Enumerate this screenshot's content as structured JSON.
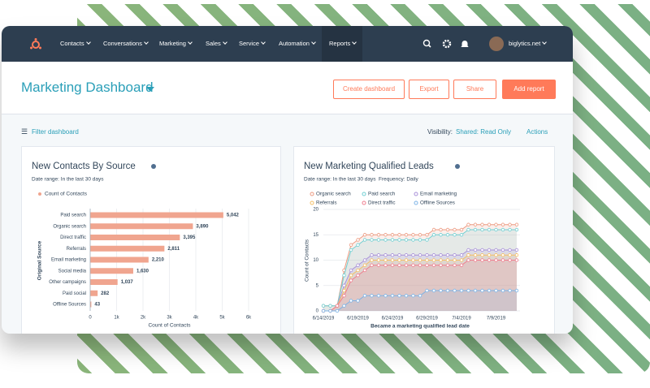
{
  "nav": {
    "items": [
      "Contacts",
      "Conversations",
      "Marketing",
      "Sales",
      "Service",
      "Automation",
      "Reports"
    ],
    "account": "biglytics.net"
  },
  "header": {
    "title": "Marketing Dashboard",
    "buttons": [
      "Create dashboard",
      "Export",
      "Share",
      "Add report"
    ]
  },
  "toolbar": {
    "filter": "Filter dashboard",
    "visibility_label": "Visibility:",
    "visibility": "Shared: Read Only",
    "actions": "Actions"
  },
  "chart_data": [
    {
      "type": "bar",
      "orientation": "horizontal",
      "title": "New Contacts By Source",
      "subtitle": "Date range: In the last 30 days",
      "categories": [
        "Paid search",
        "Organic search",
        "Direct traffic",
        "Referrals",
        "Email marketing",
        "Social media",
        "Other campaigns",
        "Paid social",
        "Offline Sources"
      ],
      "series": [
        {
          "name": "Count of Contacts",
          "color": "#f0a58f",
          "values": [
            5042,
            3890,
            3395,
            2811,
            2210,
            1630,
            1037,
            282,
            43
          ],
          "value_labels": [
            "5,042",
            "3,890",
            "3,395",
            "2,811",
            "2,210",
            "1,630",
            "1,037",
            "282",
            "43"
          ]
        }
      ],
      "xlabel": "Count of Contacts",
      "ylabel": "Original Source",
      "xlim": [
        0,
        6000
      ],
      "xticks": [
        0,
        {
          "value": 1000,
          "label": "1k"
        },
        {
          "value": 2000,
          "label": "2k"
        },
        {
          "value": 3000,
          "label": "3k"
        },
        {
          "value": 4000,
          "label": "4k"
        },
        {
          "value": 5000,
          "label": "5k"
        },
        {
          "value": 6000,
          "label": "6k"
        }
      ],
      "grid": true
    },
    {
      "type": "line",
      "title": "New Marketing Qualified Leads",
      "subtitle": "Date range: In the last 30 days",
      "frequency": "Frequency: Daily",
      "categories": [
        "6/14/2019",
        null,
        null,
        null,
        null,
        "6/19/2019",
        null,
        null,
        null,
        null,
        "6/24/2019",
        null,
        null,
        null,
        null,
        "6/29/2019",
        null,
        null,
        null,
        null,
        "7/4/2019",
        null,
        null,
        null,
        null,
        "7/9/2019",
        null,
        null,
        null
      ],
      "series": [
        {
          "name": "Organic search",
          "color": "#ec9a80",
          "values": [
            1,
            1,
            1,
            8,
            13,
            14,
            15,
            15,
            15,
            15,
            15,
            15,
            15,
            15,
            15,
            15,
            16,
            16,
            16,
            16,
            16,
            17,
            17,
            17,
            17,
            17,
            17,
            17,
            17
          ]
        },
        {
          "name": "Paid search",
          "color": "#6fcfd2",
          "values": [
            1,
            1,
            1,
            7,
            12,
            13,
            14,
            14,
            14,
            14,
            14,
            14,
            14,
            14,
            14,
            14,
            15,
            15,
            15,
            15,
            15,
            16,
            16,
            16,
            16,
            16,
            16,
            16,
            16
          ]
        },
        {
          "name": "Email marketing",
          "color": "#a890d8",
          "values": [
            0,
            0,
            1,
            5,
            8,
            9,
            10,
            11,
            11,
            11,
            11,
            11,
            11,
            11,
            11,
            11,
            11,
            11,
            11,
            11,
            11,
            12,
            12,
            12,
            12,
            12,
            12,
            12,
            12
          ]
        },
        {
          "name": "Referrals",
          "color": "#f4bf66",
          "values": [
            0,
            0,
            1,
            4,
            7,
            8,
            9,
            10,
            10,
            10,
            10,
            10,
            10,
            10,
            10,
            10,
            10,
            10,
            10,
            10,
            10,
            11,
            11,
            11,
            11,
            11,
            11,
            11,
            11
          ]
        },
        {
          "name": "Direct traffic",
          "color": "#ef7d8e",
          "values": [
            0,
            0,
            1,
            3,
            6,
            7,
            8,
            9,
            9,
            9,
            9,
            9,
            9,
            9,
            9,
            9,
            9,
            9,
            9,
            9,
            9,
            10,
            10,
            10,
            10,
            10,
            10,
            10,
            10
          ]
        },
        {
          "name": "Offline Sources",
          "color": "#7db3e6",
          "values": [
            0,
            0,
            0,
            1,
            2,
            2,
            3,
            3,
            3,
            3,
            3,
            3,
            3,
            3,
            3,
            4,
            4,
            4,
            4,
            4,
            4,
            4,
            4,
            4,
            4,
            4,
            4,
            4,
            4
          ]
        }
      ],
      "xlabel": "Became a marketing qualified lead date",
      "ylabel": "Count of Contacts",
      "ylim": [
        0,
        20
      ],
      "yticks": [
        0,
        5,
        10,
        15,
        20
      ],
      "grid": true,
      "area": true
    }
  ]
}
